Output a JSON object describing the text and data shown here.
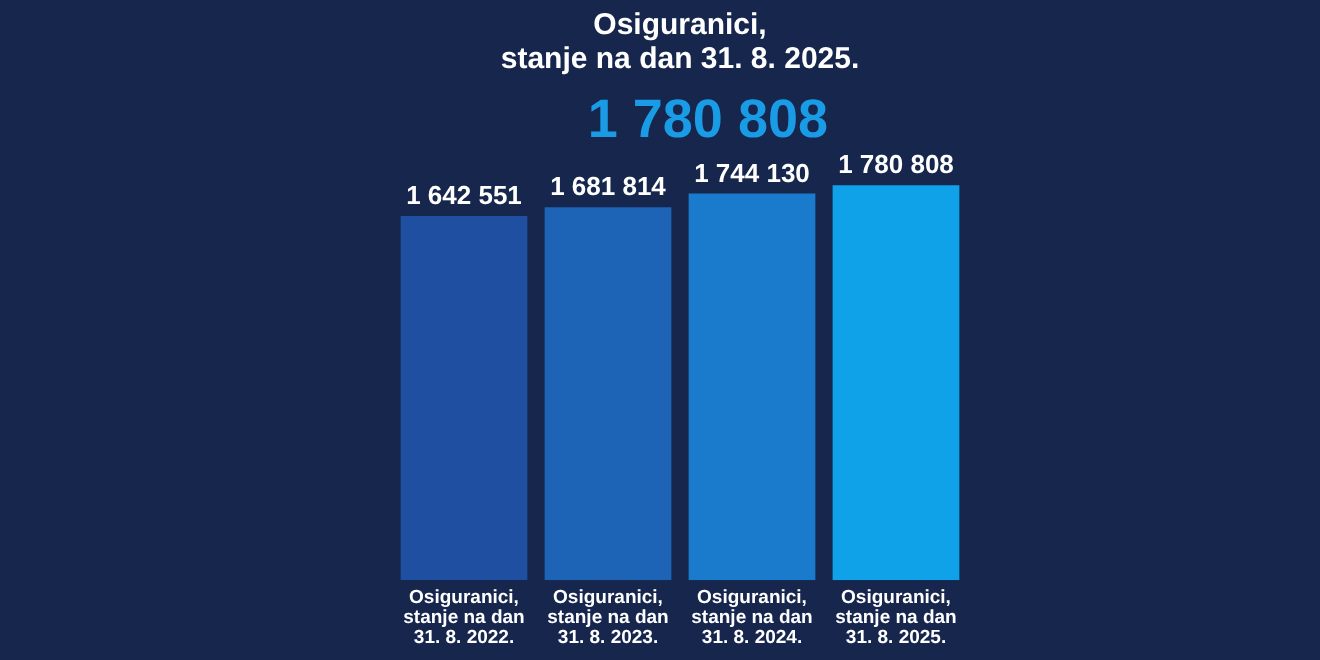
{
  "chart_data": {
    "type": "bar",
    "title": "Osiguranici,\nstanje na dan 31. 8. 2025.",
    "categories": [
      "Osiguranici, stanje na dan 31. 8. 2022.",
      "Osiguranici, stanje na dan 31. 8. 2023.",
      "Osiguranici, stanje na dan 31. 8. 2024.",
      "Osiguranici, stanje na dan 31. 8. 2025."
    ],
    "values": [
      1642551,
      1681814,
      1744130,
      1780808
    ],
    "value_labels": [
      "1 642 551",
      "1 681 814",
      "1 744 130",
      "1 780 808"
    ],
    "colors": [
      "#1f4fa0",
      "#1d63b6",
      "#1a7bcc",
      "#0fa2e8"
    ],
    "annotations": [
      "1 780 808"
    ],
    "grid": false,
    "legend": false
  }
}
